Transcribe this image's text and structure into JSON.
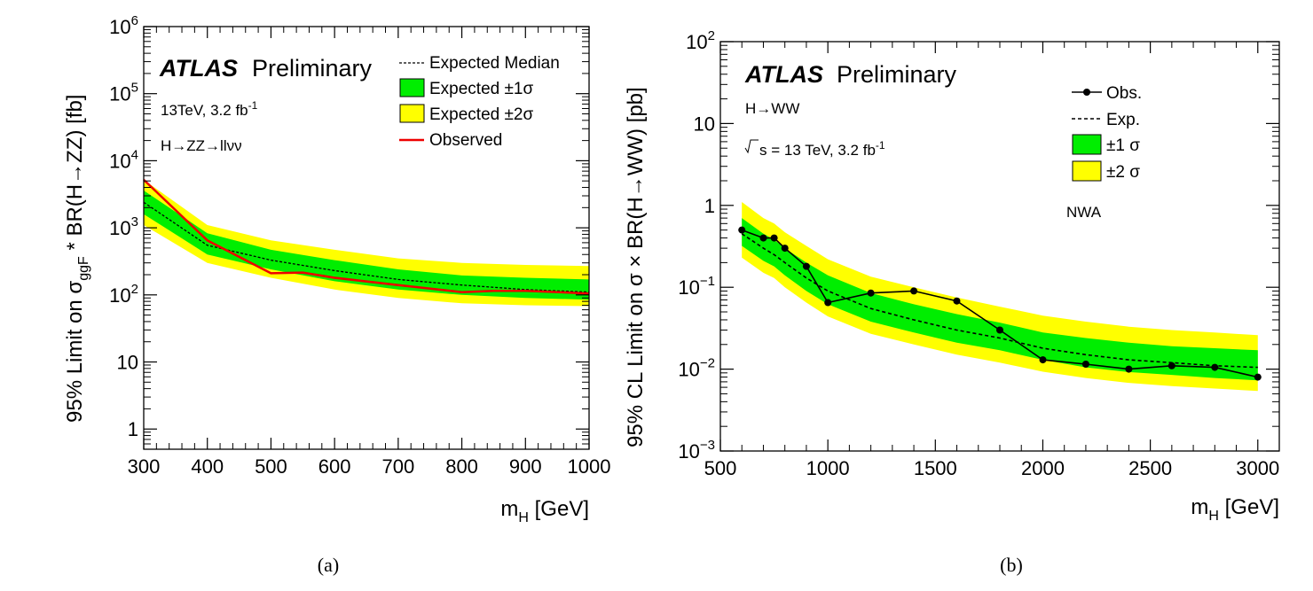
{
  "colors": {
    "band1": "#00ee00",
    "band2": "#ffff00",
    "observed_a": "#ee0000",
    "line": "#000000"
  },
  "chart_data": [
    {
      "type": "line",
      "panel": "a",
      "caption": "(a)",
      "xlabel_main": "m",
      "xlabel_sub": "H",
      "xlabel_unit": " [GeV]",
      "ylabel_parts": {
        "pre": "95% Limit on σ",
        "sub": "ggF",
        "post": " * BR(H→ZZ) [fb]"
      },
      "xlim": [
        300,
        1000
      ],
      "ylim": [
        0.5,
        1000000
      ],
      "yscale": "log",
      "xticks": [
        300,
        400,
        500,
        600,
        700,
        800,
        900,
        1000
      ],
      "xtick_labels": [
        "300",
        "400",
        "500",
        "600",
        "700",
        "800",
        "900",
        "1000"
      ],
      "yticks": [
        {
          "v": 1,
          "base": "1",
          "exp": ""
        },
        {
          "v": 10,
          "base": "10",
          "exp": ""
        },
        {
          "v": 100,
          "base": "10",
          "exp": "2"
        },
        {
          "v": 1000,
          "base": "10",
          "exp": "3"
        },
        {
          "v": 10000,
          "base": "10",
          "exp": "4"
        },
        {
          "v": 100000,
          "base": "10",
          "exp": "5"
        },
        {
          "v": 1000000,
          "base": "10",
          "exp": "6"
        }
      ],
      "atlas": "ATLAS",
      "preliminary": "Preliminary",
      "energy": {
        "text": "13TeV, 3.2 fb",
        "sup": "-1"
      },
      "channel": "H→ZZ→llνν",
      "legend": [
        {
          "key": "expected",
          "label": "Expected Median"
        },
        {
          "key": "band1",
          "label": "Expected ±1σ"
        },
        {
          "key": "band2",
          "label": "Expected ±2σ"
        },
        {
          "key": "observed",
          "label": "Observed"
        }
      ],
      "x": [
        300,
        400,
        500,
        600,
        700,
        800,
        900,
        1000
      ],
      "series": [
        {
          "name": "Expected Median",
          "values": [
            2400,
            550,
            330,
            230,
            170,
            140,
            120,
            110
          ]
        },
        {
          "name": "Expected +1σ",
          "values": [
            3600,
            830,
            470,
            330,
            240,
            195,
            180,
            170
          ]
        },
        {
          "name": "Expected -1σ",
          "values": [
            1600,
            400,
            240,
            160,
            120,
            100,
            90,
            85
          ]
        },
        {
          "name": "Expected +2σ",
          "values": [
            5200,
            1100,
            650,
            470,
            350,
            300,
            280,
            270
          ]
        },
        {
          "name": "Expected -2σ",
          "values": [
            1100,
            300,
            180,
            120,
            90,
            75,
            70,
            68
          ]
        },
        {
          "name": "Observed",
          "x": [
            300,
            400,
            500,
            550,
            600,
            700,
            800,
            850,
            900,
            1000
          ],
          "values": [
            5200,
            650,
            210,
            215,
            180,
            140,
            110,
            115,
            115,
            105
          ]
        }
      ]
    },
    {
      "type": "line",
      "panel": "b",
      "caption": "(b)",
      "xlabel_main": "m",
      "xlabel_sub": "H",
      "xlabel_unit": " [GeV]",
      "ylabel": "95% CL Limit on σ × BR(H→WW) [pb]",
      "xlim": [
        500,
        3100
      ],
      "ylim": [
        0.001,
        100
      ],
      "yscale": "log",
      "xticks": [
        500,
        1000,
        1500,
        2000,
        2500,
        3000
      ],
      "xtick_labels": [
        "500",
        "1000",
        "1500",
        "2000",
        "2500",
        "3000"
      ],
      "yticks": [
        {
          "v": 0.001,
          "base": "10",
          "exp": "−3"
        },
        {
          "v": 0.01,
          "base": "10",
          "exp": "−2"
        },
        {
          "v": 0.1,
          "base": "10",
          "exp": "−1"
        },
        {
          "v": 1,
          "base": "1",
          "exp": ""
        },
        {
          "v": 10,
          "base": "10",
          "exp": ""
        },
        {
          "v": 100,
          "base": "10",
          "exp": "2"
        }
      ],
      "atlas": "ATLAS",
      "preliminary": "Preliminary",
      "channel": "H→WW",
      "energy": {
        "pre": "s = 13 TeV, 3.2 fb",
        "sup": "-1"
      },
      "model": "NWA",
      "legend": [
        {
          "key": "observed",
          "label": "Obs."
        },
        {
          "key": "expected",
          "label": "Exp."
        },
        {
          "key": "band1",
          "label": "±1 σ"
        },
        {
          "key": "band2",
          "label": "±2 σ"
        }
      ],
      "x": [
        600,
        700,
        750,
        800,
        900,
        1000,
        1200,
        1400,
        1600,
        1800,
        2000,
        2200,
        2400,
        2600,
        2800,
        3000
      ],
      "series": [
        {
          "name": "Obs.",
          "values": [
            0.5,
            0.4,
            0.4,
            0.3,
            0.18,
            0.065,
            0.085,
            0.09,
            0.068,
            0.03,
            0.013,
            0.0115,
            0.01,
            0.011,
            0.0105,
            0.008
          ]
        },
        {
          "name": "Exp.",
          "values": [
            0.45,
            0.3,
            0.25,
            0.2,
            0.13,
            0.09,
            0.055,
            0.04,
            0.03,
            0.024,
            0.018,
            0.015,
            0.013,
            0.012,
            0.011,
            0.0105
          ]
        },
        {
          "name": "+1σ",
          "values": [
            0.7,
            0.45,
            0.38,
            0.3,
            0.2,
            0.14,
            0.085,
            0.062,
            0.047,
            0.037,
            0.028,
            0.024,
            0.021,
            0.019,
            0.018,
            0.017
          ]
        },
        {
          "name": "-1σ",
          "values": [
            0.32,
            0.21,
            0.18,
            0.14,
            0.09,
            0.062,
            0.038,
            0.028,
            0.021,
            0.017,
            0.013,
            0.0105,
            0.0092,
            0.0085,
            0.0078,
            0.0073
          ]
        },
        {
          "name": "+2σ",
          "values": [
            1.1,
            0.7,
            0.6,
            0.47,
            0.32,
            0.22,
            0.135,
            0.1,
            0.075,
            0.058,
            0.045,
            0.038,
            0.033,
            0.03,
            0.028,
            0.026
          ]
        },
        {
          "name": "-2σ",
          "values": [
            0.23,
            0.15,
            0.13,
            0.1,
            0.065,
            0.044,
            0.027,
            0.02,
            0.015,
            0.012,
            0.0093,
            0.0078,
            0.0068,
            0.0062,
            0.0058,
            0.0054
          ]
        }
      ]
    }
  ]
}
